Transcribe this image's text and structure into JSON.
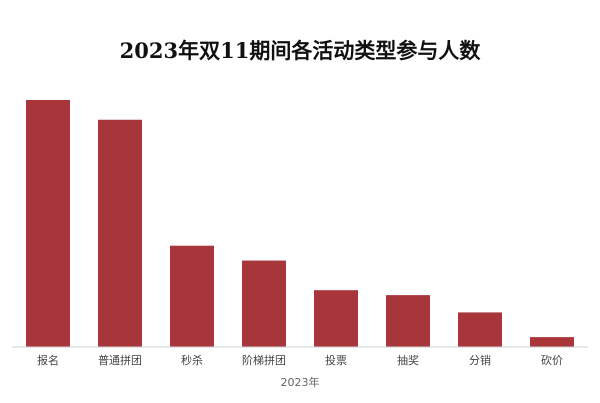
{
  "chart_data": {
    "type": "bar",
    "title": "2023年双11期间各活动类型参与人数",
    "xlabel": "2023年",
    "ylabel": "",
    "categories": [
      "报名",
      "普通拼团",
      "秒杀",
      "阶梯拼团",
      "投票",
      "抽奖",
      "分销",
      "砍价"
    ],
    "values": [
      100,
      92,
      41,
      35,
      23,
      21,
      14,
      4
    ],
    "ylim": [
      0,
      100
    ],
    "grid": false,
    "legend": "none",
    "bar_color": "#A83539"
  }
}
